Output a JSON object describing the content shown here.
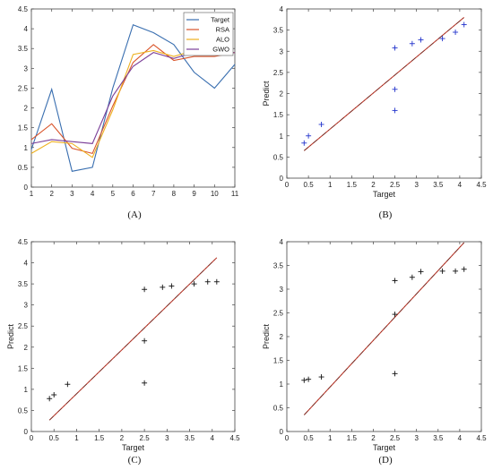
{
  "chart_data": [
    {
      "type": "line",
      "panel_label": "(A)",
      "x": [
        1,
        2,
        3,
        4,
        5,
        6,
        7,
        8,
        9,
        10,
        11
      ],
      "xlim": [
        1,
        11
      ],
      "ylim": [
        0,
        4.5
      ],
      "xticks": [
        "1",
        "2",
        "3",
        "4",
        "5",
        "6",
        "7",
        "8",
        "9",
        "10",
        "11"
      ],
      "yticks": [
        "0",
        "0.5",
        "1",
        "1.5",
        "2",
        "2.5",
        "3",
        "3.5",
        "4",
        "4.5"
      ],
      "xlabel": "",
      "ylabel": "",
      "legend": "top-right",
      "series": [
        {
          "name": "Target",
          "color": "#3a6fb0",
          "values": [
            0.95,
            2.47,
            0.4,
            0.5,
            2.5,
            4.1,
            3.9,
            3.6,
            2.9,
            2.5,
            3.1
          ]
        },
        {
          "name": "RSA",
          "color": "#d9542a",
          "values": [
            1.2,
            1.6,
            0.98,
            0.85,
            2.05,
            3.15,
            3.6,
            3.2,
            3.3,
            3.3,
            3.4
          ]
        },
        {
          "name": "ALO",
          "color": "#eeb01e",
          "values": [
            0.85,
            1.15,
            1.1,
            0.75,
            1.95,
            3.35,
            3.45,
            3.3,
            3.45,
            3.45,
            3.4
          ]
        },
        {
          "name": "GWO",
          "color": "#7b3f98",
          "values": [
            1.1,
            1.2,
            1.15,
            1.1,
            2.3,
            3.05,
            3.4,
            3.25,
            3.4,
            3.35,
            3.4
          ]
        }
      ]
    },
    {
      "type": "scatter",
      "panel_label": "(B)",
      "xlabel": "Target",
      "ylabel": "Predict",
      "xlim": [
        0,
        4.5
      ],
      "ylim": [
        0,
        4
      ],
      "xticks": [
        "0",
        "0.5",
        "1",
        "1.5",
        "2",
        "2.5",
        "3",
        "3.5",
        "4",
        "4.5"
      ],
      "yticks": [
        "0",
        "0.5",
        "1",
        "1.5",
        "2",
        "2.5",
        "3",
        "3.5",
        "4"
      ],
      "marker_color": "#2233cc",
      "points": [
        {
          "x": 0.4,
          "y": 0.83
        },
        {
          "x": 0.5,
          "y": 1.0
        },
        {
          "x": 0.8,
          "y": 1.27
        },
        {
          "x": 2.5,
          "y": 1.6
        },
        {
          "x": 2.5,
          "y": 2.1
        },
        {
          "x": 2.5,
          "y": 3.08
        },
        {
          "x": 2.9,
          "y": 3.18
        },
        {
          "x": 3.1,
          "y": 3.27
        },
        {
          "x": 3.6,
          "y": 3.3
        },
        {
          "x": 3.9,
          "y": 3.45
        },
        {
          "x": 4.1,
          "y": 3.63
        }
      ],
      "fit": {
        "x1": 0.4,
        "y1": 0.65,
        "x2": 4.1,
        "y2": 3.8
      }
    },
    {
      "type": "scatter",
      "panel_label": "(C)",
      "xlabel": "Target",
      "ylabel": "Predict",
      "xlim": [
        0,
        4.5
      ],
      "ylim": [
        0,
        4.5
      ],
      "xticks": [
        "0",
        "0.5",
        "1",
        "1.5",
        "2",
        "2.5",
        "3",
        "3.5",
        "4",
        "4.5"
      ],
      "yticks": [
        "0",
        "0.5",
        "1",
        "1.5",
        "2",
        "2.5",
        "3",
        "3.5",
        "4",
        "4.5"
      ],
      "marker_color": "#111111",
      "points": [
        {
          "x": 0.4,
          "y": 0.78
        },
        {
          "x": 0.5,
          "y": 0.87
        },
        {
          "x": 0.8,
          "y": 1.12
        },
        {
          "x": 2.5,
          "y": 1.15
        },
        {
          "x": 2.5,
          "y": 2.15
        },
        {
          "x": 2.5,
          "y": 3.37
        },
        {
          "x": 2.9,
          "y": 3.42
        },
        {
          "x": 3.1,
          "y": 3.45
        },
        {
          "x": 3.6,
          "y": 3.5
        },
        {
          "x": 3.9,
          "y": 3.55
        },
        {
          "x": 4.1,
          "y": 3.55
        }
      ],
      "fit": {
        "x1": 0.4,
        "y1": 0.27,
        "x2": 4.1,
        "y2": 4.12
      }
    },
    {
      "type": "scatter",
      "panel_label": "(D)",
      "xlabel": "Target",
      "ylabel": "Predict",
      "xlim": [
        0,
        4.5
      ],
      "ylim": [
        0,
        4
      ],
      "xticks": [
        "0",
        "0.5",
        "1",
        "1.5",
        "2",
        "2.5",
        "3",
        "3.5",
        "4",
        "4.5"
      ],
      "yticks": [
        "0",
        "0.5",
        "1",
        "1.5",
        "2",
        "2.5",
        "3",
        "3.5",
        "4"
      ],
      "marker_color": "#111111",
      "points": [
        {
          "x": 0.4,
          "y": 1.08
        },
        {
          "x": 0.5,
          "y": 1.1
        },
        {
          "x": 0.8,
          "y": 1.15
        },
        {
          "x": 2.5,
          "y": 1.22
        },
        {
          "x": 2.5,
          "y": 2.47
        },
        {
          "x": 2.5,
          "y": 3.18
        },
        {
          "x": 2.9,
          "y": 3.25
        },
        {
          "x": 3.1,
          "y": 3.37
        },
        {
          "x": 3.6,
          "y": 3.38
        },
        {
          "x": 3.9,
          "y": 3.38
        },
        {
          "x": 4.1,
          "y": 3.42
        }
      ],
      "fit": {
        "x1": 0.4,
        "y1": 0.35,
        "x2": 4.1,
        "y2": 3.98
      }
    }
  ],
  "fit_colors": {
    "line": "#c0392b",
    "dash": "#222222"
  }
}
